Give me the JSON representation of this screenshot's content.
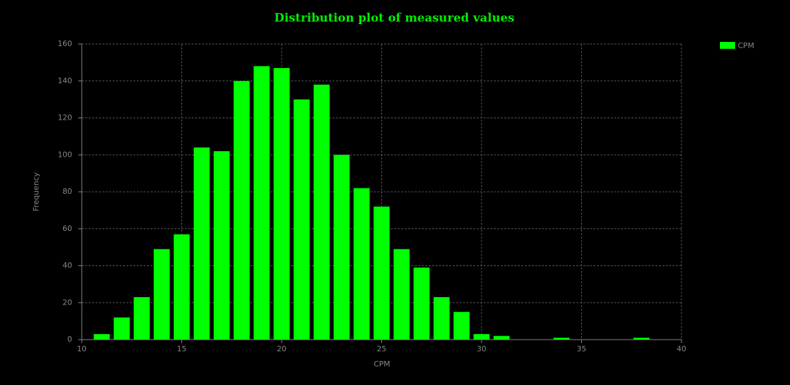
{
  "chart_data": {
    "type": "histogram",
    "title": "Distribution plot of measured values",
    "x_label": "CPM",
    "y_label": "Frequency",
    "bins": [
      10.5,
      11.5,
      12.5,
      13.5,
      14.5,
      15.5,
      16.5,
      17.5,
      18.5,
      19.5,
      20.5,
      21.5,
      22.5,
      23.5,
      24.5,
      25.5,
      26.5,
      27.5,
      28.5,
      29.5,
      30.5,
      31.5,
      32.5,
      33.5,
      34.5,
      35.5,
      36.5,
      37.5,
      38.5
    ],
    "series": [
      {
        "name": "CPM",
        "color": "#00ff00",
        "values": [
          3,
          12,
          23,
          49,
          57,
          104,
          102,
          140,
          148,
          147,
          130,
          138,
          100,
          82,
          72,
          49,
          39,
          23,
          15,
          3,
          2,
          0,
          0,
          1,
          0,
          0,
          0,
          1
        ]
      }
    ],
    "xlim": [
      10,
      40
    ],
    "xticks": [
      10,
      15,
      20,
      25,
      30,
      35,
      40
    ],
    "ylim": [
      0,
      160
    ],
    "yticks": [
      0,
      20,
      40,
      60,
      80,
      100,
      120,
      140,
      160
    ],
    "grid": true,
    "legend": "top-right"
  }
}
